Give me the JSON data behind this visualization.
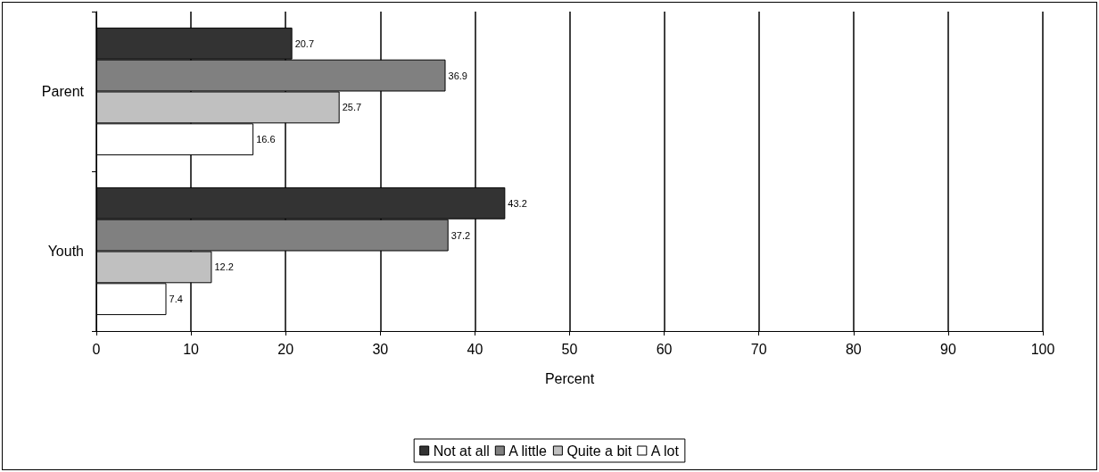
{
  "chart_data": {
    "type": "bar",
    "orientation": "horizontal",
    "xlabel": "Percent",
    "categories": [
      "Parent",
      "Youth"
    ],
    "series": [
      {
        "name": "Not at all",
        "color": "#333333",
        "values": [
          20.7,
          43.2
        ]
      },
      {
        "name": "A little",
        "color": "#808080",
        "values": [
          36.9,
          37.2
        ]
      },
      {
        "name": "Quite a bit",
        "color": "#c0c0c0",
        "values": [
          25.7,
          12.2
        ]
      },
      {
        "name": "A lot",
        "color": "#ffffff",
        "values": [
          16.6,
          7.4
        ]
      }
    ],
    "xlim": [
      0,
      100
    ],
    "xticks": [
      0,
      10,
      20,
      30,
      40,
      50,
      60,
      70,
      80,
      90,
      100
    ],
    "grid": "x",
    "legend": "bottom",
    "data_labels": true
  }
}
